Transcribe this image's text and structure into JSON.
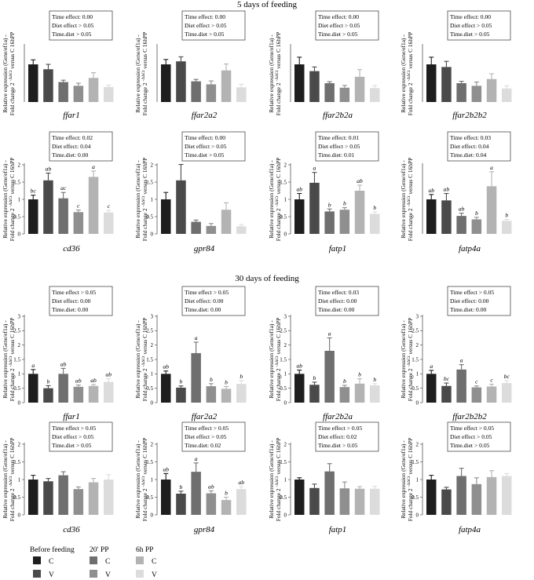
{
  "title_top": "5 days of feeding",
  "title_bottom": "30 days of feeding",
  "y_axis_label_line1": "Relative expression (Gene/ef1a) -",
  "y_axis_label_line2": "Fold change 2",
  "y_axis_label_sup": "-ΔΔCt",
  "y_axis_label_line2b": "versus C 16hPP",
  "legend": {
    "groups": [
      {
        "title": "Before feeding",
        "items": [
          {
            "code": "C",
            "color": "#1e1e1e"
          },
          {
            "code": "V",
            "color": "#4a4a4a"
          }
        ]
      },
      {
        "title": "20′ PP",
        "items": [
          {
            "code": "C",
            "color": "#6f6f6f"
          },
          {
            "code": "V",
            "color": "#8f8f8f"
          }
        ]
      },
      {
        "title": "6h PP",
        "items": [
          {
            "code": "C",
            "color": "#b3b3b3"
          },
          {
            "code": "V",
            "color": "#dcdcdc"
          }
        ]
      }
    ]
  },
  "chart_data": [
    {
      "type": "bar",
      "section": "5 days of feeding",
      "title": "ffar1",
      "categories": [
        "C",
        "V",
        "C",
        "V",
        "C",
        "V"
      ],
      "values": [
        1.0,
        0.87,
        0.53,
        0.43,
        0.64,
        0.4
      ],
      "errors": [
        0.12,
        0.13,
        0.05,
        0.07,
        0.14,
        0.05
      ],
      "ylim": [
        0,
        1.5
      ],
      "yticks": [],
      "labels": [
        "",
        "",
        "",
        "",
        "",
        ""
      ],
      "stats": [
        "Time effect: 0.00",
        "Diet effect > 0.05",
        "Time.diet > 0.05"
      ]
    },
    {
      "type": "bar",
      "section": "5 days of feeding",
      "title": "ffar2a2",
      "categories": [
        "C",
        "V",
        "C",
        "V",
        "C",
        "V"
      ],
      "values": [
        1.0,
        1.08,
        0.55,
        0.47,
        0.84,
        0.39
      ],
      "errors": [
        0.13,
        0.12,
        0.05,
        0.09,
        0.17,
        0.08
      ],
      "ylim": [
        0,
        1.5
      ],
      "yticks": [],
      "labels": [
        "",
        "",
        "",
        "",
        "",
        ""
      ],
      "stats": [
        "Time effect: 0.00",
        "Diet effect > 0.05",
        "Time.diet > 0.05"
      ]
    },
    {
      "type": "bar",
      "section": "5 days of feeding",
      "title": "ffar2b2a",
      "categories": [
        "C",
        "V",
        "C",
        "V",
        "C",
        "V"
      ],
      "values": [
        1.0,
        0.82,
        0.5,
        0.38,
        0.67,
        0.37
      ],
      "errors": [
        0.19,
        0.11,
        0.04,
        0.06,
        0.19,
        0.07
      ],
      "ylim": [
        0,
        1.5
      ],
      "yticks": [],
      "labels": [
        "",
        "",
        "",
        "",
        "",
        ""
      ],
      "stats": [
        "Time effect: 0.00",
        "Diet effect > 0.05",
        "Time.diet > 0.05"
      ]
    },
    {
      "type": "bar",
      "section": "5 days of feeding",
      "title": "ffar2b2b2",
      "categories": [
        "C",
        "V",
        "C",
        "V",
        "C",
        "V"
      ],
      "values": [
        1.0,
        0.93,
        0.5,
        0.43,
        0.61,
        0.36
      ],
      "errors": [
        0.19,
        0.15,
        0.05,
        0.1,
        0.14,
        0.07
      ],
      "ylim": [
        0,
        1.5
      ],
      "yticks": [],
      "labels": [
        "",
        "",
        "",
        "",
        "",
        ""
      ],
      "stats": [
        "Time effect: 0.00",
        "Diet effect > 0.05",
        "Time.diet > 0.05"
      ]
    },
    {
      "type": "bar",
      "section": "5 days of feeding",
      "title": "cd36",
      "categories": [
        "C",
        "V",
        "C",
        "V",
        "C",
        "V"
      ],
      "values": [
        1.0,
        1.55,
        1.03,
        0.63,
        1.65,
        0.62
      ],
      "errors": [
        0.12,
        0.21,
        0.17,
        0.06,
        0.17,
        0.06
      ],
      "ylim": [
        0,
        2
      ],
      "yticks": [
        "0",
        "0.5",
        "1",
        "1.5",
        "2"
      ],
      "labels": [
        "bc",
        "ab",
        "ac",
        "c",
        "a",
        "c"
      ],
      "stats": [
        "Time effect: 0.02",
        "Diet effect: 0.04",
        "Time.diet: 0.00"
      ]
    },
    {
      "type": "bar",
      "section": "5 days of feeding",
      "title": "gpr84",
      "categories": [
        "C",
        "V",
        "C",
        "V",
        "C",
        "V"
      ],
      "values": [
        1.0,
        1.55,
        0.35,
        0.23,
        0.7,
        0.22
      ],
      "errors": [
        0.2,
        0.46,
        0.05,
        0.07,
        0.2,
        0.05
      ],
      "ylim": [
        0,
        2
      ],
      "yticks": [
        "0",
        "0.5",
        "1",
        "1.5",
        "2"
      ],
      "labels": [
        "",
        "",
        "",
        "",
        "",
        ""
      ],
      "stats": [
        "Time effect: 0.00",
        "Diet effect > 0.05",
        "Time.diet > 0.05"
      ]
    },
    {
      "type": "bar",
      "section": "5 days of feeding",
      "title": "fatp1",
      "categories": [
        "C",
        "V",
        "C",
        "V",
        "C",
        "V"
      ],
      "values": [
        1.0,
        1.48,
        0.65,
        0.7,
        1.25,
        0.58
      ],
      "errors": [
        0.17,
        0.3,
        0.07,
        0.06,
        0.16,
        0.06
      ],
      "ylim": [
        0,
        2
      ],
      "yticks": [
        "0",
        "0.5",
        "1",
        "1.5",
        "2"
      ],
      "labels": [
        "ab",
        "a",
        "b",
        "b",
        "ab",
        "b"
      ],
      "stats": [
        "Time effect: 0.01",
        "Diet effect > 0.05",
        "Time.diet: 0.01"
      ]
    },
    {
      "type": "bar",
      "section": "5 days of feeding",
      "title": "fatp4a",
      "categories": [
        "C",
        "V",
        "C",
        "V",
        "C",
        "V"
      ],
      "values": [
        1.0,
        0.97,
        0.52,
        0.42,
        1.38,
        0.38
      ],
      "errors": [
        0.14,
        0.2,
        0.08,
        0.06,
        0.42,
        0.04
      ],
      "ylim": [
        0,
        2
      ],
      "yticks": [],
      "labels": [
        "ab",
        "ab",
        "ab",
        "b",
        "a",
        "b"
      ],
      "stats": [
        "Time effect: 0.03",
        "Diet effect: 0.04",
        "Time.diet: 0.04"
      ]
    },
    {
      "type": "bar",
      "section": "30 days of feeding",
      "title": "ffar1",
      "categories": [
        "C",
        "V",
        "C",
        "V",
        "C",
        "V"
      ],
      "values": [
        1.0,
        0.5,
        1.0,
        0.55,
        0.58,
        0.72
      ],
      "errors": [
        0.15,
        0.09,
        0.19,
        0.06,
        0.05,
        0.11
      ],
      "ylim": [
        0,
        3
      ],
      "yticks": [
        "0",
        "0.5",
        "1",
        "1.5",
        "2",
        "2.5",
        "3"
      ],
      "labels": [
        "a",
        "b",
        "ab",
        "ab",
        "ab",
        "ab"
      ],
      "stats": [
        "Time effect > 0.05",
        "Diet effect: 0.00",
        "Time.diet: 0.00"
      ]
    },
    {
      "type": "bar",
      "section": "30 days of feeding",
      "title": "ffar2a2",
      "categories": [
        "C",
        "V",
        "C",
        "V",
        "C",
        "V"
      ],
      "values": [
        1.0,
        0.52,
        1.72,
        0.57,
        0.48,
        0.65
      ],
      "errors": [
        0.1,
        0.06,
        0.38,
        0.09,
        0.08,
        0.12
      ],
      "ylim": [
        0,
        3
      ],
      "yticks": [
        "0",
        "0.5",
        "1",
        "1.5",
        "2",
        "2.5",
        "3"
      ],
      "labels": [
        "ab",
        "b",
        "a",
        "b",
        "b",
        "b"
      ],
      "stats": [
        "Time effect > 0.05",
        "Diet effect: 0.00",
        "Time.diet: 0.00"
      ]
    },
    {
      "type": "bar",
      "section": "30 days of feeding",
      "title": "ffar2b2a",
      "categories": [
        "C",
        "V",
        "C",
        "V",
        "C",
        "V"
      ],
      "values": [
        1.0,
        0.62,
        1.8,
        0.54,
        0.66,
        0.6
      ],
      "errors": [
        0.13,
        0.09,
        0.45,
        0.06,
        0.17,
        0.06
      ],
      "ylim": [
        0,
        3
      ],
      "yticks": [
        "0",
        "0.5",
        "1",
        "1.5",
        "2",
        "2.5",
        "3"
      ],
      "labels": [
        "ab",
        "b",
        "a",
        "b",
        "b",
        "b"
      ],
      "stats": [
        "Time effect: 0.03",
        "Diet effect: 0.00",
        "Time.diet: 0.00"
      ]
    },
    {
      "type": "bar",
      "section": "30 days of feeding",
      "title": "ffar2b2b2",
      "categories": [
        "C",
        "V",
        "C",
        "V",
        "C",
        "V"
      ],
      "values": [
        1.0,
        0.58,
        1.15,
        0.53,
        0.56,
        0.68
      ],
      "errors": [
        0.12,
        0.1,
        0.17,
        0.05,
        0.08,
        0.08
      ],
      "ylim": [
        0,
        3
      ],
      "yticks": [
        "0",
        "0.5",
        "1",
        "1.5",
        "2",
        "2.5",
        "3"
      ],
      "labels": [
        "a",
        "bc",
        "a",
        "c",
        "c",
        "bc"
      ],
      "stats": [
        "Time effect > 0.05",
        "Diet effect: 0.00",
        "Time.diet: 0.00"
      ]
    },
    {
      "type": "bar",
      "section": "30 days of feeding",
      "title": "cd36",
      "categories": [
        "C",
        "V",
        "C",
        "V",
        "C",
        "V"
      ],
      "values": [
        1.0,
        0.95,
        1.12,
        0.73,
        0.92,
        1.0
      ],
      "errors": [
        0.12,
        0.08,
        0.1,
        0.06,
        0.11,
        0.14
      ],
      "ylim": [
        0,
        2
      ],
      "yticks": [
        "0",
        "0.5",
        "1",
        "1.5",
        "2"
      ],
      "labels": [
        "",
        "",
        "",
        "",
        "",
        ""
      ],
      "stats": [
        "Time effect > 0.05",
        "Diet effect > 0.05",
        "Time.diet > 0.05"
      ]
    },
    {
      "type": "bar",
      "section": "30 days of feeding",
      "title": "gpr84",
      "categories": [
        "C",
        "V",
        "C",
        "V",
        "C",
        "V"
      ],
      "values": [
        1.0,
        0.6,
        1.22,
        0.61,
        0.42,
        0.73
      ],
      "errors": [
        0.17,
        0.07,
        0.25,
        0.07,
        0.08,
        0.07
      ],
      "ylim": [
        0,
        2
      ],
      "yticks": [
        "0",
        "0.5",
        "1",
        "1.5",
        "2"
      ],
      "labels": [
        "ab",
        "b",
        "a",
        "ab",
        "b",
        "ab"
      ],
      "stats": [
        "Time effect > 0.05",
        "Diet effect > 0.05",
        "Time.diet: 0.02"
      ]
    },
    {
      "type": "bar",
      "section": "30 days of feeding",
      "title": "fatp1",
      "categories": [
        "C",
        "V",
        "C",
        "V",
        "C",
        "V"
      ],
      "values": [
        1.0,
        0.76,
        1.23,
        0.75,
        0.74,
        0.74
      ],
      "errors": [
        0.05,
        0.11,
        0.22,
        0.18,
        0.06,
        0.07
      ],
      "ylim": [
        0,
        2
      ],
      "yticks": [
        "0",
        "0.5",
        "1",
        "1.5",
        "2"
      ],
      "labels": [
        "",
        "",
        "",
        "",
        "",
        ""
      ],
      "stats": [
        "Time effect > 0.05",
        "Diet effect: 0.02",
        "Time.diet > 0.05"
      ]
    },
    {
      "type": "bar",
      "section": "30 days of feeding",
      "title": "fatp4a",
      "categories": [
        "C",
        "V",
        "C",
        "V",
        "C",
        "V"
      ],
      "values": [
        1.0,
        0.72,
        1.1,
        0.87,
        1.07,
        1.1
      ],
      "errors": [
        0.12,
        0.06,
        0.22,
        0.18,
        0.18,
        0.07
      ],
      "ylim": [
        0,
        2
      ],
      "yticks": [
        "0",
        "0.5",
        "1",
        "1.5",
        "2"
      ],
      "labels": [
        "",
        "",
        "",
        "",
        "",
        ""
      ],
      "stats": [
        "Time effect > 0.05",
        "Diet effect > 0.05",
        "Time.diet > 0.05"
      ]
    }
  ]
}
